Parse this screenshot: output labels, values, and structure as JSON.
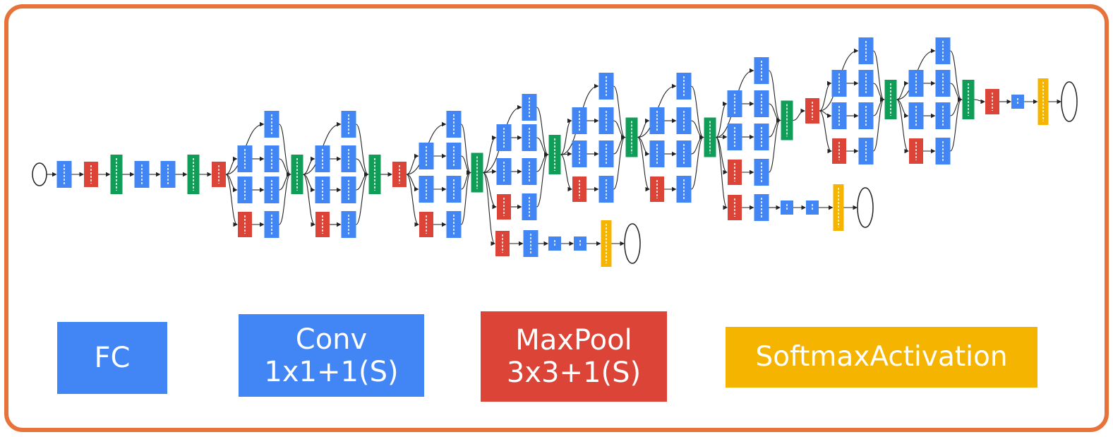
{
  "colors": {
    "frame": "#e8733a",
    "conv": "#4285f4",
    "maxpool": "#db4437",
    "concat": "#0f9d58",
    "softmax": "#f4b400",
    "edge": "#222222"
  },
  "legend": {
    "fc": {
      "label": "FC",
      "color": "#4285f4"
    },
    "conv": {
      "line1": "Conv",
      "line2": "1x1+1(S)",
      "color": "#4285f4"
    },
    "maxpool": {
      "line1": "MaxPool",
      "line2": "3x3+1(S)",
      "color": "#db4437"
    },
    "softmax": {
      "label": "SoftmaxActivation",
      "color": "#f4b400"
    }
  },
  "network": {
    "node_types": [
      "input",
      "conv",
      "maxpool",
      "concat",
      "fc",
      "softmax",
      "output"
    ]
  }
}
